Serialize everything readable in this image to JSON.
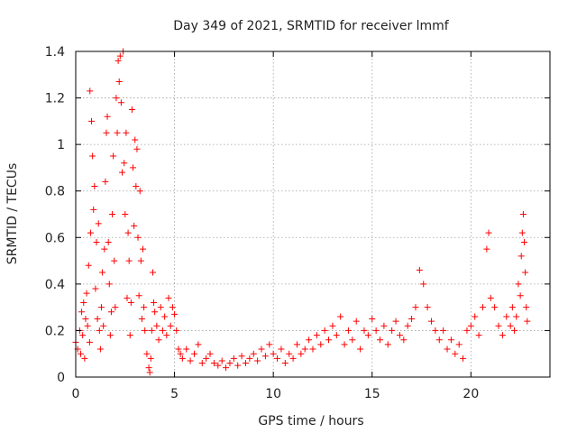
{
  "chart_data": {
    "type": "scatter",
    "title": "Day 349 of 2021, SRMTID for receiver lmmf",
    "xlabel": "GPS time / hours",
    "ylabel": "SRMTID / TECUs",
    "xlim": [
      0,
      24
    ],
    "ylim": [
      0,
      1.4
    ],
    "grid": true,
    "marker": "+",
    "color": "#ff0000",
    "x_ticks": [
      0,
      5,
      10,
      15,
      20
    ],
    "x_tick_labels": [
      "0",
      "5",
      "10",
      "15",
      "20"
    ],
    "y_ticks": [
      0,
      0.2,
      0.4,
      0.6,
      0.8,
      1.0,
      1.2,
      1.4
    ],
    "y_tick_labels": [
      "0",
      "0.2",
      "0.4",
      "0.6",
      "0.8",
      "1",
      "1.2",
      "1.4"
    ],
    "series": [
      {
        "name": "SRMTID",
        "points": [
          [
            0.0,
            0.15
          ],
          [
            0.1,
            0.12
          ],
          [
            0.2,
            0.2
          ],
          [
            0.25,
            0.1
          ],
          [
            0.3,
            0.28
          ],
          [
            0.35,
            0.18
          ],
          [
            0.4,
            0.32
          ],
          [
            0.45,
            0.08
          ],
          [
            0.5,
            0.25
          ],
          [
            0.55,
            0.36
          ],
          [
            0.6,
            0.22
          ],
          [
            0.65,
            0.48
          ],
          [
            0.7,
            0.15
          ],
          [
            0.72,
            1.23
          ],
          [
            0.75,
            0.62
          ],
          [
            0.8,
            1.1
          ],
          [
            0.85,
            0.95
          ],
          [
            0.9,
            0.72
          ],
          [
            0.95,
            0.82
          ],
          [
            1.0,
            0.38
          ],
          [
            1.05,
            0.58
          ],
          [
            1.1,
            0.25
          ],
          [
            1.15,
            0.66
          ],
          [
            1.2,
            0.2
          ],
          [
            1.25,
            0.12
          ],
          [
            1.3,
            0.3
          ],
          [
            1.35,
            0.45
          ],
          [
            1.4,
            0.22
          ],
          [
            1.45,
            0.55
          ],
          [
            1.5,
            0.84
          ],
          [
            1.55,
            1.05
          ],
          [
            1.6,
            1.12
          ],
          [
            1.65,
            0.58
          ],
          [
            1.7,
            0.4
          ],
          [
            1.75,
            0.18
          ],
          [
            1.8,
            0.28
          ],
          [
            1.85,
            0.7
          ],
          [
            1.9,
            0.95
          ],
          [
            1.95,
            0.5
          ],
          [
            2.0,
            0.3
          ],
          [
            2.05,
            1.2
          ],
          [
            2.1,
            1.05
          ],
          [
            2.15,
            1.36
          ],
          [
            2.2,
            1.27
          ],
          [
            2.25,
            1.38
          ],
          [
            2.3,
            1.18
          ],
          [
            2.35,
            0.88
          ],
          [
            2.4,
            1.4
          ],
          [
            2.45,
            0.92
          ],
          [
            2.5,
            0.7
          ],
          [
            2.55,
            1.05
          ],
          [
            2.6,
            0.34
          ],
          [
            2.65,
            0.62
          ],
          [
            2.7,
            0.5
          ],
          [
            2.75,
            0.18
          ],
          [
            2.8,
            0.32
          ],
          [
            2.85,
            1.15
          ],
          [
            2.9,
            0.9
          ],
          [
            2.95,
            0.65
          ],
          [
            3.0,
            1.02
          ],
          [
            3.05,
            0.82
          ],
          [
            3.1,
            0.98
          ],
          [
            3.15,
            0.6
          ],
          [
            3.2,
            0.35
          ],
          [
            3.25,
            0.8
          ],
          [
            3.3,
            0.5
          ],
          [
            3.35,
            0.25
          ],
          [
            3.4,
            0.55
          ],
          [
            3.45,
            0.3
          ],
          [
            3.5,
            0.2
          ],
          [
            3.6,
            0.1
          ],
          [
            3.7,
            0.04
          ],
          [
            3.75,
            0.02
          ],
          [
            3.8,
            0.08
          ],
          [
            3.85,
            0.2
          ],
          [
            3.9,
            0.45
          ],
          [
            3.95,
            0.32
          ],
          [
            4.0,
            0.28
          ],
          [
            4.1,
            0.22
          ],
          [
            4.2,
            0.16
          ],
          [
            4.3,
            0.3
          ],
          [
            4.4,
            0.2
          ],
          [
            4.5,
            0.26
          ],
          [
            4.6,
            0.18
          ],
          [
            4.7,
            0.34
          ],
          [
            4.8,
            0.22
          ],
          [
            4.9,
            0.3
          ],
          [
            5.0,
            0.27
          ],
          [
            5.1,
            0.2
          ],
          [
            5.2,
            0.12
          ],
          [
            5.3,
            0.1
          ],
          [
            5.4,
            0.08
          ],
          [
            5.6,
            0.12
          ],
          [
            5.8,
            0.07
          ],
          [
            6.0,
            0.1
          ],
          [
            6.2,
            0.14
          ],
          [
            6.4,
            0.06
          ],
          [
            6.6,
            0.08
          ],
          [
            6.8,
            0.1
          ],
          [
            7.0,
            0.06
          ],
          [
            7.2,
            0.05
          ],
          [
            7.4,
            0.07
          ],
          [
            7.6,
            0.04
          ],
          [
            7.8,
            0.06
          ],
          [
            8.0,
            0.08
          ],
          [
            8.2,
            0.05
          ],
          [
            8.4,
            0.09
          ],
          [
            8.6,
            0.06
          ],
          [
            8.8,
            0.08
          ],
          [
            9.0,
            0.1
          ],
          [
            9.2,
            0.07
          ],
          [
            9.4,
            0.12
          ],
          [
            9.6,
            0.09
          ],
          [
            9.8,
            0.14
          ],
          [
            10.0,
            0.1
          ],
          [
            10.2,
            0.08
          ],
          [
            10.4,
            0.12
          ],
          [
            10.6,
            0.06
          ],
          [
            10.8,
            0.1
          ],
          [
            11.0,
            0.08
          ],
          [
            11.2,
            0.14
          ],
          [
            11.4,
            0.1
          ],
          [
            11.6,
            0.12
          ],
          [
            11.8,
            0.16
          ],
          [
            12.0,
            0.12
          ],
          [
            12.2,
            0.18
          ],
          [
            12.4,
            0.14
          ],
          [
            12.6,
            0.2
          ],
          [
            12.8,
            0.16
          ],
          [
            13.0,
            0.22
          ],
          [
            13.2,
            0.18
          ],
          [
            13.4,
            0.26
          ],
          [
            13.6,
            0.14
          ],
          [
            13.8,
            0.2
          ],
          [
            14.0,
            0.16
          ],
          [
            14.2,
            0.24
          ],
          [
            14.4,
            0.12
          ],
          [
            14.6,
            0.2
          ],
          [
            14.8,
            0.18
          ],
          [
            15.0,
            0.25
          ],
          [
            15.2,
            0.2
          ],
          [
            15.4,
            0.16
          ],
          [
            15.6,
            0.22
          ],
          [
            15.8,
            0.14
          ],
          [
            16.0,
            0.2
          ],
          [
            16.2,
            0.24
          ],
          [
            16.4,
            0.18
          ],
          [
            16.6,
            0.16
          ],
          [
            16.8,
            0.22
          ],
          [
            17.0,
            0.25
          ],
          [
            17.2,
            0.3
          ],
          [
            17.4,
            0.46
          ],
          [
            17.6,
            0.4
          ],
          [
            17.8,
            0.3
          ],
          [
            18.0,
            0.24
          ],
          [
            18.2,
            0.2
          ],
          [
            18.4,
            0.16
          ],
          [
            18.6,
            0.2
          ],
          [
            18.8,
            0.12
          ],
          [
            19.0,
            0.16
          ],
          [
            19.2,
            0.1
          ],
          [
            19.4,
            0.14
          ],
          [
            19.6,
            0.08
          ],
          [
            19.8,
            0.2
          ],
          [
            20.0,
            0.22
          ],
          [
            20.2,
            0.26
          ],
          [
            20.4,
            0.18
          ],
          [
            20.6,
            0.3
          ],
          [
            20.8,
            0.55
          ],
          [
            20.9,
            0.62
          ],
          [
            21.0,
            0.34
          ],
          [
            21.2,
            0.3
          ],
          [
            21.4,
            0.22
          ],
          [
            21.6,
            0.18
          ],
          [
            21.8,
            0.26
          ],
          [
            22.0,
            0.22
          ],
          [
            22.1,
            0.3
          ],
          [
            22.2,
            0.2
          ],
          [
            22.3,
            0.26
          ],
          [
            22.4,
            0.4
          ],
          [
            22.5,
            0.35
          ],
          [
            22.55,
            0.52
          ],
          [
            22.6,
            0.62
          ],
          [
            22.65,
            0.7
          ],
          [
            22.7,
            0.58
          ],
          [
            22.75,
            0.45
          ],
          [
            22.8,
            0.3
          ],
          [
            22.85,
            0.24
          ]
        ]
      }
    ]
  }
}
